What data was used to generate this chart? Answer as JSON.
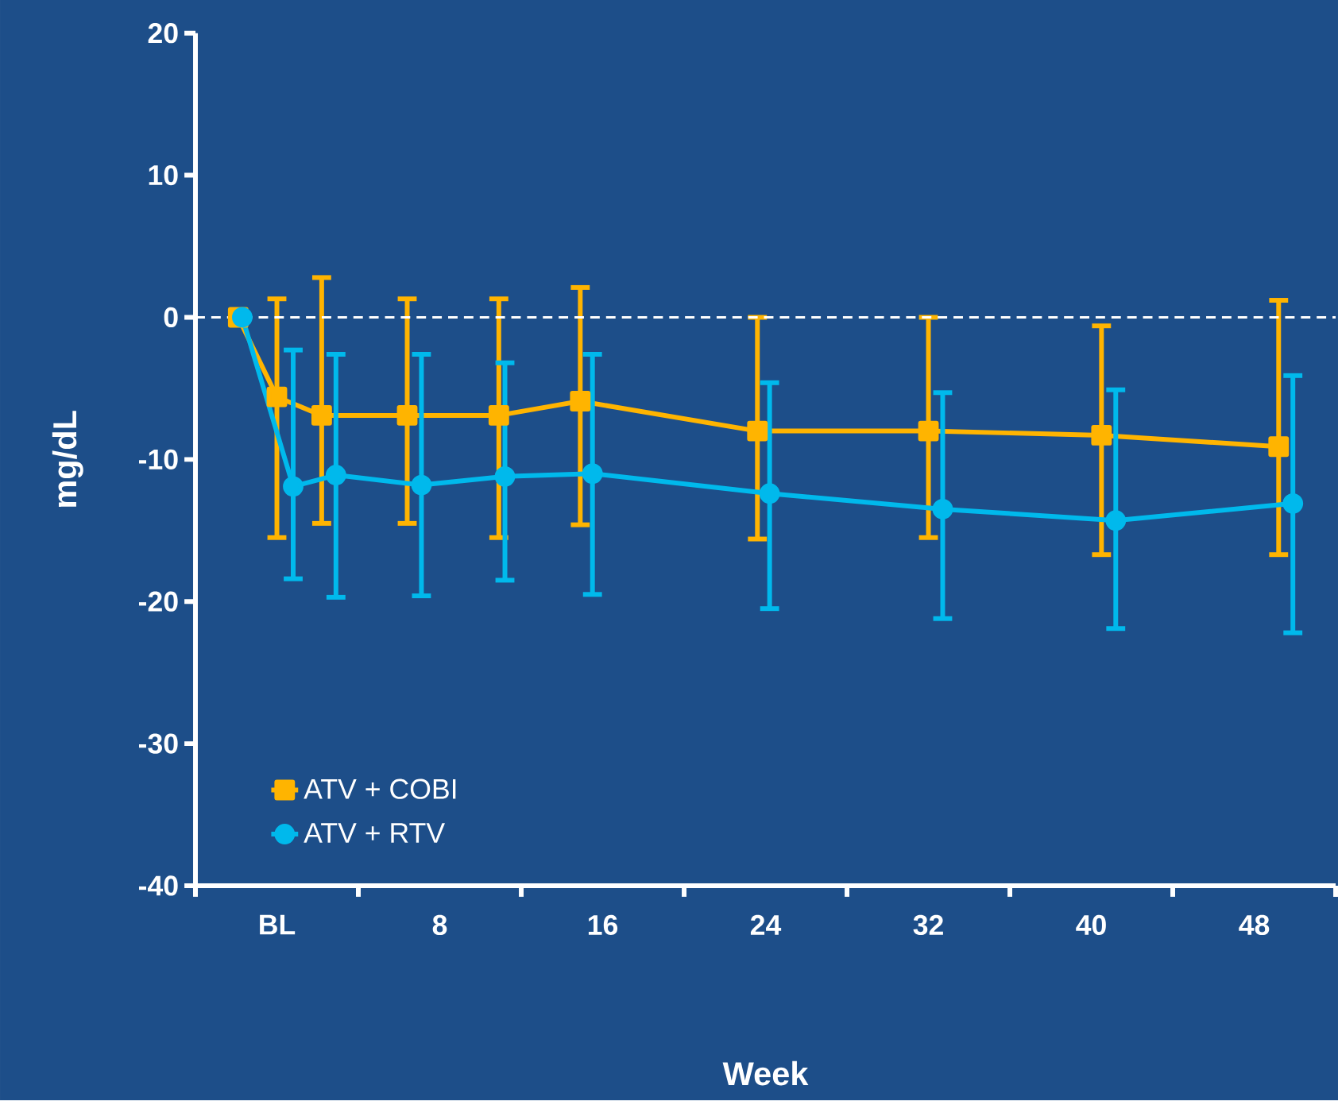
{
  "chart_data": {
    "type": "line",
    "xlabel": "Week",
    "ylabel": "mg/dL",
    "xlim": [
      -4,
      52
    ],
    "ylim": [
      -40,
      20
    ],
    "xticks": [
      {
        "value": -4,
        "label": null
      },
      {
        "value": 0,
        "label": "BL"
      },
      {
        "value": 4,
        "label": null
      },
      {
        "value": 8,
        "label": "8"
      },
      {
        "value": 12,
        "label": null
      },
      {
        "value": 16,
        "label": "16"
      },
      {
        "value": 20,
        "label": null
      },
      {
        "value": 24,
        "label": "24"
      },
      {
        "value": 28,
        "label": null
      },
      {
        "value": 32,
        "label": "32"
      },
      {
        "value": 36,
        "label": null
      },
      {
        "value": 40,
        "label": "40"
      },
      {
        "value": 44,
        "label": null
      },
      {
        "value": 48,
        "label": "48"
      },
      {
        "value": 52,
        "label": null
      }
    ],
    "yticks": [
      -40,
      -30,
      -20,
      -10,
      0,
      10,
      20
    ],
    "legend": "bottom left",
    "grid": false,
    "line_style": "solid",
    "ref_lines": [
      {
        "axis": "y",
        "value": 0,
        "color": "#ffffff",
        "line_style": "dashed"
      }
    ],
    "series": [
      {
        "name": "ATV + COBI",
        "color": "#ffb400",
        "marker": "square",
        "x": [
          -1.9,
          0,
          2.2,
          6.4,
          10.9,
          14.9,
          23.6,
          32.0,
          40.5,
          49.2
        ],
        "values": [
          0,
          -5.6,
          -6.9,
          -6.9,
          -6.9,
          -5.9,
          -8.0,
          -8.0,
          -8.3,
          -9.1
        ],
        "errors": [
          null,
          [
            -15.5,
            1.3
          ],
          [
            -14.5,
            2.8
          ],
          [
            -14.5,
            1.3
          ],
          [
            -15.5,
            1.3
          ],
          [
            -14.6,
            2.1
          ],
          [
            -15.6,
            0
          ],
          [
            -15.5,
            0
          ],
          [
            -16.7,
            -0.6
          ],
          [
            -16.7,
            1.2
          ]
        ]
      },
      {
        "name": "ATV + RTV",
        "color": "#00b9ec",
        "marker": "circle",
        "x": [
          -1.7,
          0.8,
          2.9,
          7.1,
          11.2,
          15.5,
          24.2,
          32.7,
          41.2,
          49.9
        ],
        "values": [
          0,
          -11.9,
          -11.1,
          -11.8,
          -11.2,
          -11.0,
          -12.4,
          -13.5,
          -14.3,
          -13.1
        ],
        "errors": [
          null,
          [
            -18.4,
            -2.3
          ],
          [
            -19.7,
            -2.6
          ],
          [
            -19.6,
            -2.6
          ],
          [
            -18.5,
            -3.2
          ],
          [
            -19.5,
            -2.6
          ],
          [
            -20.5,
            -4.6
          ],
          [
            -21.2,
            -5.3
          ],
          [
            -21.9,
            -5.1
          ],
          [
            -22.2,
            -4.1
          ]
        ]
      }
    ]
  }
}
